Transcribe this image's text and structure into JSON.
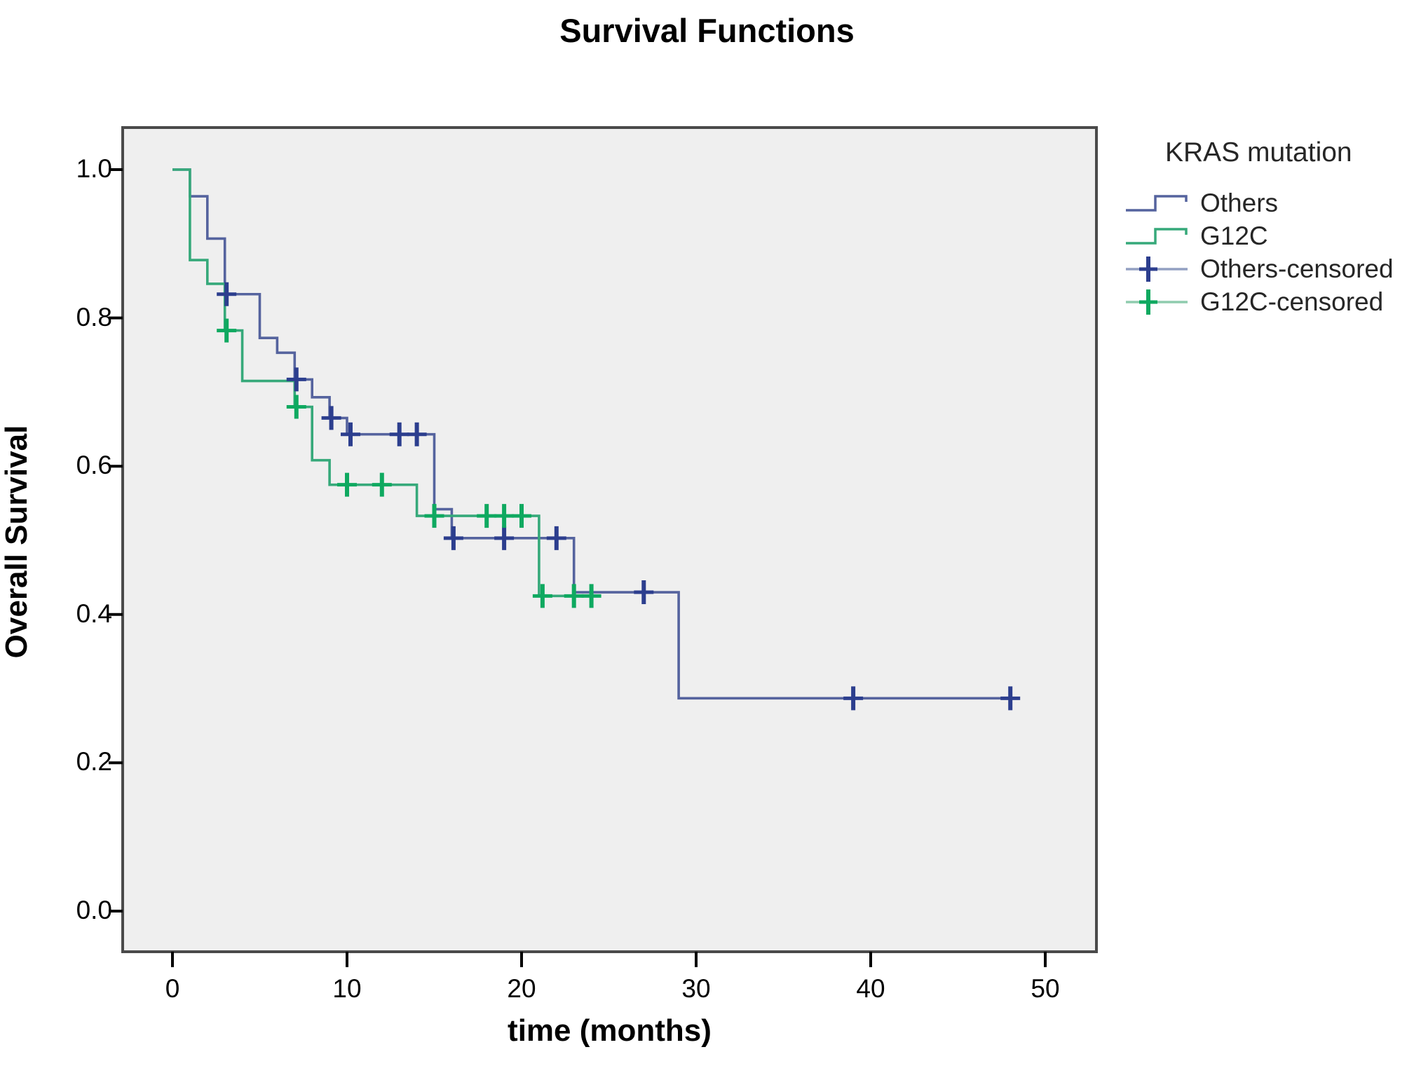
{
  "title": "Survival Functions",
  "x_axis": {
    "label": "time (months)",
    "ticks": [
      "0",
      "10",
      "20",
      "30",
      "40",
      "50"
    ],
    "range": [
      0,
      50
    ]
  },
  "y_axis": {
    "label": "Overall Survival",
    "ticks": [
      "1.0",
      "0.8",
      "0.6",
      "0.4",
      "0.2",
      "0.0"
    ],
    "range": [
      0.0,
      1.0
    ]
  },
  "legend": {
    "title": "KRAS mutation",
    "items": [
      {
        "label": "Others",
        "type": "line",
        "color": "#55639e",
        "accent": "#55639e"
      },
      {
        "label": "G12C",
        "type": "line",
        "color": "#36a97a",
        "accent": "#36a97a"
      },
      {
        "label": "Others-censored",
        "type": "censor",
        "color": "#93a0c2",
        "accent": "#2c3e8e"
      },
      {
        "label": "G12C-censored",
        "type": "censor",
        "color": "#8fccae",
        "accent": "#0fa960"
      }
    ]
  },
  "colors": {
    "plot_background": "#efefef",
    "frame_border": "#4a4a4a",
    "axis_tick": "#000000",
    "others_line": "#55639e",
    "others_censor": "#2c3e8e",
    "g12c_line": "#36a97a",
    "g12c_censor": "#0fa960"
  },
  "chart_data": {
    "type": "line",
    "subtype": "kaplan-meier-step",
    "title": "Survival Functions",
    "xlabel": "time (months)",
    "ylabel": "Overall Survival",
    "xlim": [
      -2.9,
      52.9
    ],
    "ylim": [
      -0.055,
      1.057
    ],
    "x_ticks": [
      0,
      10,
      20,
      30,
      40,
      50
    ],
    "y_ticks": [
      1.0,
      0.8,
      0.6,
      0.4,
      0.2,
      0.0
    ],
    "grid": false,
    "legend_position": "right-top",
    "series": [
      {
        "name": "Others",
        "color": "#55639e",
        "censor_color": "#2c3e8e",
        "start": [
          0,
          1.0
        ],
        "steps": [
          [
            1,
            0.964
          ],
          [
            2,
            0.907
          ],
          [
            3,
            0.832
          ],
          [
            5,
            0.773
          ],
          [
            6,
            0.753
          ],
          [
            7,
            0.717
          ],
          [
            8,
            0.693
          ],
          [
            9,
            0.665
          ],
          [
            10,
            0.643
          ],
          [
            15,
            0.542
          ],
          [
            16,
            0.503
          ],
          [
            23,
            0.43
          ],
          [
            29,
            0.287
          ]
        ],
        "end_time": 48.2,
        "censored": [
          [
            3.1,
            0.832
          ],
          [
            7.1,
            0.717
          ],
          [
            9.1,
            0.665
          ],
          [
            10.2,
            0.643
          ],
          [
            13,
            0.643
          ],
          [
            14,
            0.643
          ],
          [
            16.1,
            0.503
          ],
          [
            19,
            0.503
          ],
          [
            22,
            0.503
          ],
          [
            27,
            0.43
          ],
          [
            39,
            0.287
          ],
          [
            48,
            0.287
          ]
        ]
      },
      {
        "name": "G12C",
        "color": "#36a97a",
        "censor_color": "#0fa960",
        "start": [
          0,
          1.0
        ],
        "steps": [
          [
            1,
            0.878
          ],
          [
            2,
            0.846
          ],
          [
            3,
            0.783
          ],
          [
            4,
            0.715
          ],
          [
            7,
            0.68
          ],
          [
            8,
            0.608
          ],
          [
            9,
            0.575
          ],
          [
            14,
            0.533
          ],
          [
            21,
            0.425
          ]
        ],
        "end_time": 24.4,
        "censored": [
          [
            3.1,
            0.783
          ],
          [
            7.1,
            0.68
          ],
          [
            10,
            0.575
          ],
          [
            12,
            0.575
          ],
          [
            15,
            0.533
          ],
          [
            18,
            0.533
          ],
          [
            19,
            0.533
          ],
          [
            20,
            0.533
          ],
          [
            21.2,
            0.425
          ],
          [
            23,
            0.425
          ],
          [
            24,
            0.425
          ]
        ]
      }
    ]
  }
}
